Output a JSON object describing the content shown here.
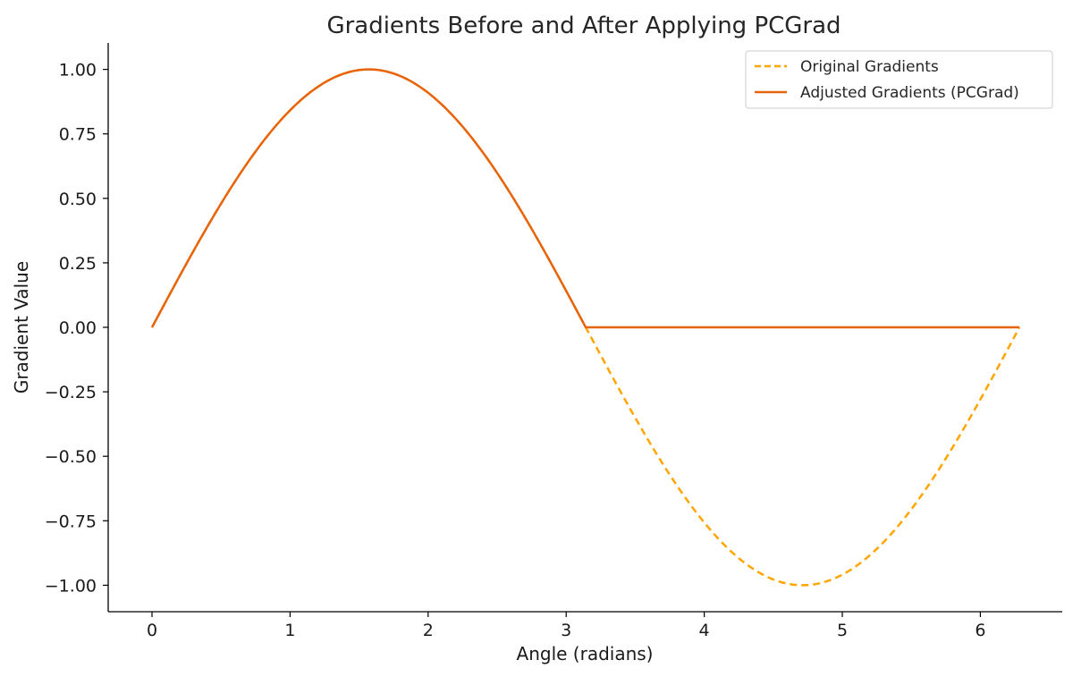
{
  "chart_data": {
    "type": "line",
    "title": "Gradients Before and After Applying PCGrad",
    "xlabel": "Angle (radians)",
    "ylabel": "Gradient Value",
    "xlim": [
      -0.31,
      6.6
    ],
    "ylim": [
      -1.1,
      1.1
    ],
    "x_ticks": [
      0,
      1,
      2,
      3,
      4,
      5,
      6
    ],
    "x_tick_labels": [
      "0",
      "1",
      "2",
      "3",
      "4",
      "5",
      "6"
    ],
    "y_ticks": [
      1.0,
      0.75,
      0.5,
      0.25,
      0.0,
      -0.25,
      -0.5,
      -0.75,
      -1.0
    ],
    "y_tick_labels": [
      "1.00",
      "0.75",
      "0.50",
      "0.25",
      "0.00",
      "−0.25",
      "−0.50",
      "−0.75",
      "−1.00"
    ],
    "grid": false,
    "legend_position": "top-right",
    "series": [
      {
        "name": "Original Gradients",
        "color": "#FFA500",
        "style": "dashed",
        "function": "sin(x)",
        "x_range": [
          0,
          6.283
        ],
        "points": [
          [
            0,
            0
          ],
          [
            0.785,
            0.707
          ],
          [
            1.571,
            1.0
          ],
          [
            2.356,
            0.707
          ],
          [
            3.142,
            0.0
          ],
          [
            3.927,
            -0.707
          ],
          [
            4.712,
            -1.0
          ],
          [
            5.498,
            -0.707
          ],
          [
            6.283,
            0.0
          ]
        ]
      },
      {
        "name": "Adjusted Gradients (PCGrad)",
        "color": "#E8640C",
        "style": "solid",
        "function": "max(sin(x), 0)",
        "x_range": [
          0,
          6.283
        ],
        "points": [
          [
            0,
            0
          ],
          [
            0.785,
            0.707
          ],
          [
            1.571,
            1.0
          ],
          [
            2.356,
            0.707
          ],
          [
            3.11,
            0.03
          ],
          [
            3.17,
            0.0
          ],
          [
            6.283,
            0.0
          ]
        ]
      }
    ]
  }
}
